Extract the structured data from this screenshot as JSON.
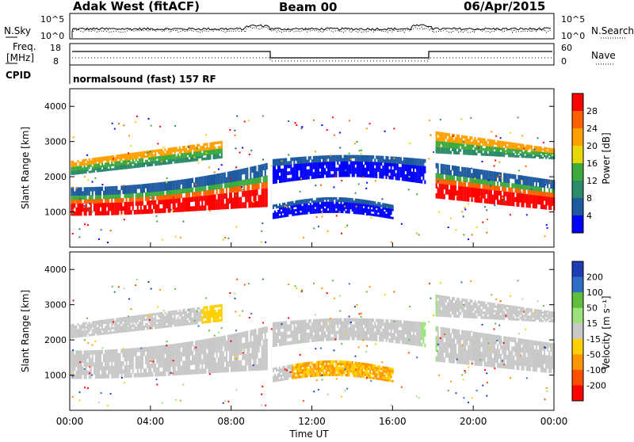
{
  "header": {
    "station": "Adak West (fitACF)",
    "beam": "Beam 00",
    "date": "06/Apr/2015"
  },
  "panels": {
    "nsky": {
      "left_label": "N.Sky",
      "right_label": "N.Search",
      "left_ticks": [
        "10^5",
        "10^0"
      ],
      "right_ticks": [
        "10^5",
        "10^0"
      ]
    },
    "freq": {
      "left_label_line1": "Freq.",
      "left_label_line2": "[MHz]",
      "right_label": "Nave",
      "left_ticks": [
        "18",
        "8"
      ],
      "right_ticks": [
        "60",
        "0"
      ]
    },
    "cpid": {
      "label": "CPID",
      "text": "normalsound (fast) 157 RF"
    }
  },
  "chart_data": [
    {
      "type": "heatmap",
      "title": "",
      "ylabel": "Slant Range [km]",
      "ylim": [
        0,
        4500
      ],
      "y_ticks": [
        "1000",
        "2000",
        "3000",
        "4000"
      ],
      "colorbar": {
        "label": "Power [dB]",
        "ticks": [
          "28",
          "24",
          "20",
          "16",
          "12",
          "8",
          "4"
        ],
        "colors": [
          "#ff0000",
          "#ff6000",
          "#ffa000",
          "#e8d800",
          "#3caa3c",
          "#2a8a6a",
          "#1e5aa0",
          "#0000ff"
        ]
      }
    },
    {
      "type": "heatmap",
      "title": "",
      "ylabel": "Slant Range [km]",
      "ylim": [
        0,
        4500
      ],
      "y_ticks": [
        "1000",
        "2000",
        "3000",
        "4000"
      ],
      "xlabel": "Time UT",
      "x_ticks": [
        "00:00",
        "04:00",
        "08:00",
        "12:00",
        "16:00",
        "20:00",
        "00:00"
      ],
      "colorbar": {
        "label": "Velocity [m s⁻¹]",
        "ticks": [
          "200",
          "100",
          "50",
          "15",
          "-15",
          "-50",
          "-100",
          "-200"
        ],
        "colors": [
          "#1e3cb4",
          "#2e6ec8",
          "#5fbf3c",
          "#9be37a",
          "#c8c8c8",
          "#ffd000",
          "#ff9600",
          "#ff5000",
          "#ff0000"
        ]
      }
    }
  ]
}
